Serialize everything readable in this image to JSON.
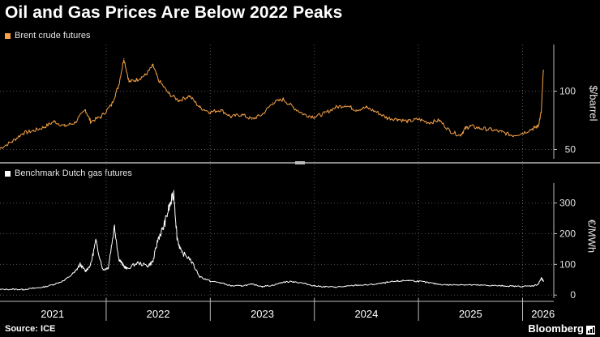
{
  "title": "Oil and Gas Prices Are Below 2022 Peaks",
  "source": "Source: ICE",
  "brand": "Bloomberg",
  "colors": {
    "background": "#000000",
    "oil": "#f7a246",
    "gas": "#ffffff",
    "grid": "#555555"
  },
  "chart_data": [
    {
      "type": "line",
      "title": "Brent crude futures",
      "legend": [
        "Brent crude futures"
      ],
      "ylabel": "$/barrel",
      "ylim": [
        42,
        140
      ],
      "yticks": [
        50,
        100
      ],
      "xlim": [
        2020.98,
        2026.3
      ],
      "x": [
        2020.98,
        2021.1,
        2021.2,
        2021.3,
        2021.4,
        2021.5,
        2021.6,
        2021.7,
        2021.8,
        2021.85,
        2021.95,
        2022.05,
        2022.12,
        2022.17,
        2022.22,
        2022.3,
        2022.38,
        2022.45,
        2022.5,
        2022.6,
        2022.7,
        2022.8,
        2022.9,
        2023.0,
        2023.1,
        2023.2,
        2023.3,
        2023.4,
        2023.5,
        2023.6,
        2023.7,
        2023.8,
        2023.9,
        2024.0,
        2024.1,
        2024.2,
        2024.3,
        2024.4,
        2024.5,
        2024.6,
        2024.7,
        2024.8,
        2024.9,
        2025.0,
        2025.1,
        2025.2,
        2025.3,
        2025.4,
        2025.45,
        2025.5,
        2025.6,
        2025.7,
        2025.8,
        2025.9,
        2026.0,
        2026.1,
        2026.15,
        2026.18,
        2026.2
      ],
      "series": [
        {
          "name": "Brent crude futures",
          "values": [
            51,
            57,
            64,
            66,
            69,
            74,
            70,
            73,
            84,
            74,
            78,
            88,
            105,
            128,
            108,
            110,
            114,
            122,
            110,
            98,
            92,
            96,
            86,
            82,
            84,
            78,
            80,
            76,
            80,
            90,
            93,
            86,
            80,
            78,
            81,
            86,
            88,
            84,
            86,
            82,
            77,
            76,
            74,
            76,
            73,
            75,
            66,
            62,
            68,
            70,
            68,
            67,
            65,
            62,
            64,
            68,
            70,
            82,
            118
          ]
        }
      ]
    },
    {
      "type": "line",
      "title": "Benchmark Dutch gas futures",
      "legend": [
        "Benchmark Dutch gas futures"
      ],
      "ylabel": "€/MWh",
      "ylim": [
        -10,
        365
      ],
      "yticks": [
        0,
        100,
        200,
        300
      ],
      "xlim": [
        2020.98,
        2026.3
      ],
      "x": [
        2020.98,
        2021.1,
        2021.2,
        2021.3,
        2021.4,
        2021.5,
        2021.6,
        2021.7,
        2021.75,
        2021.8,
        2021.85,
        2021.9,
        2021.97,
        2022.02,
        2022.08,
        2022.12,
        2022.16,
        2022.2,
        2022.3,
        2022.4,
        2022.45,
        2022.5,
        2022.55,
        2022.6,
        2022.65,
        2022.68,
        2022.72,
        2022.8,
        2022.9,
        2023.0,
        2023.1,
        2023.2,
        2023.3,
        2023.4,
        2023.5,
        2023.6,
        2023.7,
        2023.8,
        2023.9,
        2024.0,
        2024.1,
        2024.2,
        2024.3,
        2024.4,
        2024.5,
        2024.6,
        2024.7,
        2024.8,
        2024.9,
        2025.0,
        2025.1,
        2025.2,
        2025.3,
        2025.4,
        2025.5,
        2025.6,
        2025.7,
        2025.8,
        2025.9,
        2026.0,
        2026.1,
        2026.15,
        2026.18,
        2026.2
      ],
      "series": [
        {
          "name": "Benchmark Dutch gas futures",
          "values": [
            18,
            19,
            18,
            22,
            26,
            35,
            48,
            75,
            100,
            78,
            98,
            175,
            82,
            90,
            225,
            120,
            98,
            85,
            105,
            95,
            110,
            185,
            220,
            280,
            330,
            190,
            140,
            120,
            60,
            45,
            40,
            30,
            30,
            35,
            28,
            32,
            42,
            44,
            38,
            30,
            27,
            26,
            28,
            32,
            33,
            36,
            41,
            45,
            48,
            45,
            40,
            35,
            33,
            34,
            33,
            32,
            31,
            30,
            29,
            28,
            30,
            35,
            55,
            45
          ]
        }
      ]
    }
  ],
  "xaxis": {
    "year_labels": [
      "2021",
      "2022",
      "2023",
      "2024",
      "2025",
      "2026"
    ]
  }
}
